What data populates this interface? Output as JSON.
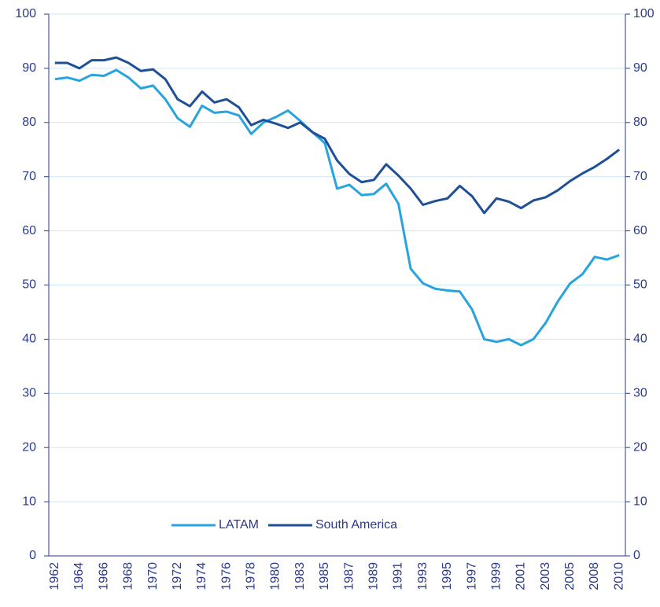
{
  "chart_data": {
    "type": "line",
    "categories": [
      "1962",
      null,
      "1964",
      null,
      "1966",
      null,
      "1968",
      null,
      "1970",
      null,
      "1972",
      null,
      "1974",
      null,
      "1976",
      null,
      "1978",
      null,
      "1980",
      null,
      "1983",
      null,
      "1985",
      null,
      "1987",
      null,
      "1989",
      null,
      "1991",
      null,
      "1993",
      null,
      "1995",
      null,
      "1997",
      null,
      "1999",
      null,
      "2001",
      null,
      "2003",
      null,
      "2005",
      null,
      "2008",
      null,
      "2010"
    ],
    "series": [
      {
        "name": "LATAM",
        "color": "#27a3dd",
        "values": [
          88,
          88.3,
          87.7,
          88.8,
          88.6,
          89.7,
          88.3,
          86.3,
          86.8,
          84.3,
          80.8,
          79.2,
          83.1,
          81.8,
          82,
          81.3,
          77.9,
          80,
          81,
          82.2,
          80.3,
          78.2,
          76.2,
          67.8,
          68.5,
          66.6,
          66.8,
          68.7,
          65,
          53,
          50.3,
          49.3,
          49,
          48.8,
          45.5,
          40,
          39.5,
          40,
          38.9,
          40,
          43,
          47,
          50.3,
          52,
          55.2,
          54.7,
          55.5
        ]
      },
      {
        "name": "South America",
        "color": "#1f4f97",
        "values": [
          91,
          91,
          90,
          91.5,
          91.5,
          92,
          91,
          89.5,
          89.8,
          88,
          84.3,
          83,
          85.7,
          83.7,
          84.3,
          82.8,
          79.5,
          80.5,
          79.8,
          79,
          80,
          78.2,
          77,
          73,
          70.5,
          69,
          69.4,
          72.3,
          70.2,
          67.8,
          64.8,
          65.5,
          66,
          68.3,
          66.4,
          63.3,
          66,
          65.4,
          64.2,
          65.6,
          66.2,
          67.5,
          69.2,
          70.6,
          71.8,
          73.3,
          75
        ]
      }
    ],
    "ylim": [
      0,
      100
    ],
    "yticks": [
      0,
      10,
      20,
      30,
      40,
      50,
      60,
      70,
      80,
      90,
      100
    ],
    "y2lim": [
      0,
      100
    ],
    "y2ticks": [
      0,
      10,
      20,
      30,
      40,
      50,
      60,
      70,
      80,
      90,
      100
    ],
    "grid": true
  }
}
